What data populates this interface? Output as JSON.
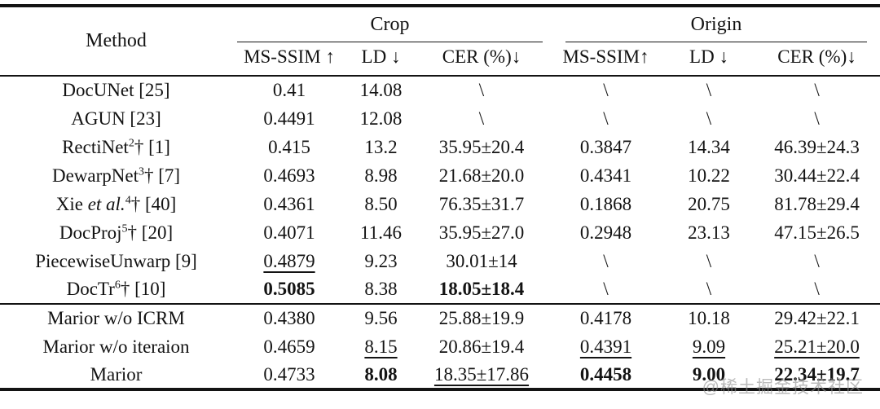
{
  "colors": {
    "background": "#ffffff",
    "text": "#131313",
    "rule": "#131313",
    "watermark": "#919191"
  },
  "watermark": "@稀土掘金技术社区",
  "table": {
    "col_headers": {
      "method": "Method",
      "groups": [
        {
          "label": "Crop",
          "cols": [
            "MS-SSIM ↑",
            "LD ↓",
            "CER (%)↓"
          ]
        },
        {
          "label": "Origin",
          "cols": [
            "MS-SSIM↑",
            "LD ↓",
            "CER (%)↓"
          ]
        }
      ]
    },
    "groups": [
      {
        "rows": [
          {
            "method": [
              {
                "t": "DocUNet [25]"
              }
            ],
            "cells": [
              {
                "v": "0.41"
              },
              {
                "v": "14.08"
              },
              {
                "v": "\\"
              },
              {
                "v": "\\"
              },
              {
                "v": "\\"
              },
              {
                "v": "\\"
              }
            ]
          },
          {
            "method": [
              {
                "t": "AGUN [23]"
              }
            ],
            "cells": [
              {
                "v": "0.4491"
              },
              {
                "v": "12.08"
              },
              {
                "v": "\\"
              },
              {
                "v": "\\"
              },
              {
                "v": "\\"
              },
              {
                "v": "\\"
              }
            ]
          },
          {
            "method": [
              {
                "t": "RectiNet"
              },
              {
                "sup": "2"
              },
              {
                "t": "† [1]"
              }
            ],
            "cells": [
              {
                "v": "0.415"
              },
              {
                "v": "13.2"
              },
              {
                "v": "35.95±20.4"
              },
              {
                "v": "0.3847"
              },
              {
                "v": "14.34"
              },
              {
                "v": "46.39±24.3"
              }
            ]
          },
          {
            "method": [
              {
                "t": "DewarpNet"
              },
              {
                "sup": "3"
              },
              {
                "t": "† [7]"
              }
            ],
            "cells": [
              {
                "v": "0.4693"
              },
              {
                "v": "8.98"
              },
              {
                "v": "21.68±20.0"
              },
              {
                "v": "0.4341"
              },
              {
                "v": "10.22"
              },
              {
                "v": "30.44±22.4"
              }
            ]
          },
          {
            "method": [
              {
                "t": "Xie "
              },
              {
                "i": "et al."
              },
              {
                "sup": "4"
              },
              {
                "t": "† [40]"
              }
            ],
            "cells": [
              {
                "v": "0.4361"
              },
              {
                "v": "8.50"
              },
              {
                "v": "76.35±31.7"
              },
              {
                "v": "0.1868"
              },
              {
                "v": "20.75"
              },
              {
                "v": "81.78±29.4"
              }
            ]
          },
          {
            "method": [
              {
                "t": "DocProj"
              },
              {
                "sup": "5"
              },
              {
                "t": "† [20]"
              }
            ],
            "cells": [
              {
                "v": "0.4071"
              },
              {
                "v": "11.46"
              },
              {
                "v": "35.95±27.0"
              },
              {
                "v": "0.2948"
              },
              {
                "v": "23.13"
              },
              {
                "v": "47.15±26.5"
              }
            ]
          },
          {
            "method": [
              {
                "t": "PiecewiseUnwarp [9]"
              }
            ],
            "cells": [
              {
                "v": "0.4879",
                "s": "u"
              },
              {
                "v": "9.23"
              },
              {
                "v": "30.01±14"
              },
              {
                "v": "\\"
              },
              {
                "v": "\\"
              },
              {
                "v": "\\"
              }
            ]
          },
          {
            "method": [
              {
                "t": "DocTr"
              },
              {
                "sup": "6"
              },
              {
                "t": "† [10]"
              }
            ],
            "cells": [
              {
                "v": "0.5085",
                "s": "b"
              },
              {
                "v": "8.38"
              },
              {
                "v": "18.05±18.4",
                "s": "b"
              },
              {
                "v": "\\"
              },
              {
                "v": "\\"
              },
              {
                "v": "\\"
              }
            ]
          }
        ]
      },
      {
        "rows": [
          {
            "method": [
              {
                "t": "Marior w/o ICRM"
              }
            ],
            "cells": [
              {
                "v": "0.4380"
              },
              {
                "v": "9.56"
              },
              {
                "v": "25.88±19.9"
              },
              {
                "v": "0.4178"
              },
              {
                "v": "10.18"
              },
              {
                "v": "29.42±22.1"
              }
            ]
          },
          {
            "method": [
              {
                "t": "Marior w/o iteraion"
              }
            ],
            "cells": [
              {
                "v": "0.4659"
              },
              {
                "v": "8.15",
                "s": "u"
              },
              {
                "v": "20.86±19.4"
              },
              {
                "v": "0.4391",
                "s": "u"
              },
              {
                "v": "9.09",
                "s": "u"
              },
              {
                "v": "25.21±20.0",
                "s": "u"
              }
            ]
          },
          {
            "method": [
              {
                "t": "Marior"
              }
            ],
            "cells": [
              {
                "v": "0.4733"
              },
              {
                "v": "8.08",
                "s": "b"
              },
              {
                "v": "18.35±17.86",
                "s": "u"
              },
              {
                "v": "0.4458",
                "s": "b"
              },
              {
                "v": "9.00",
                "s": "b"
              },
              {
                "v": "22.34±19.7",
                "s": "b"
              }
            ]
          }
        ]
      }
    ]
  }
}
